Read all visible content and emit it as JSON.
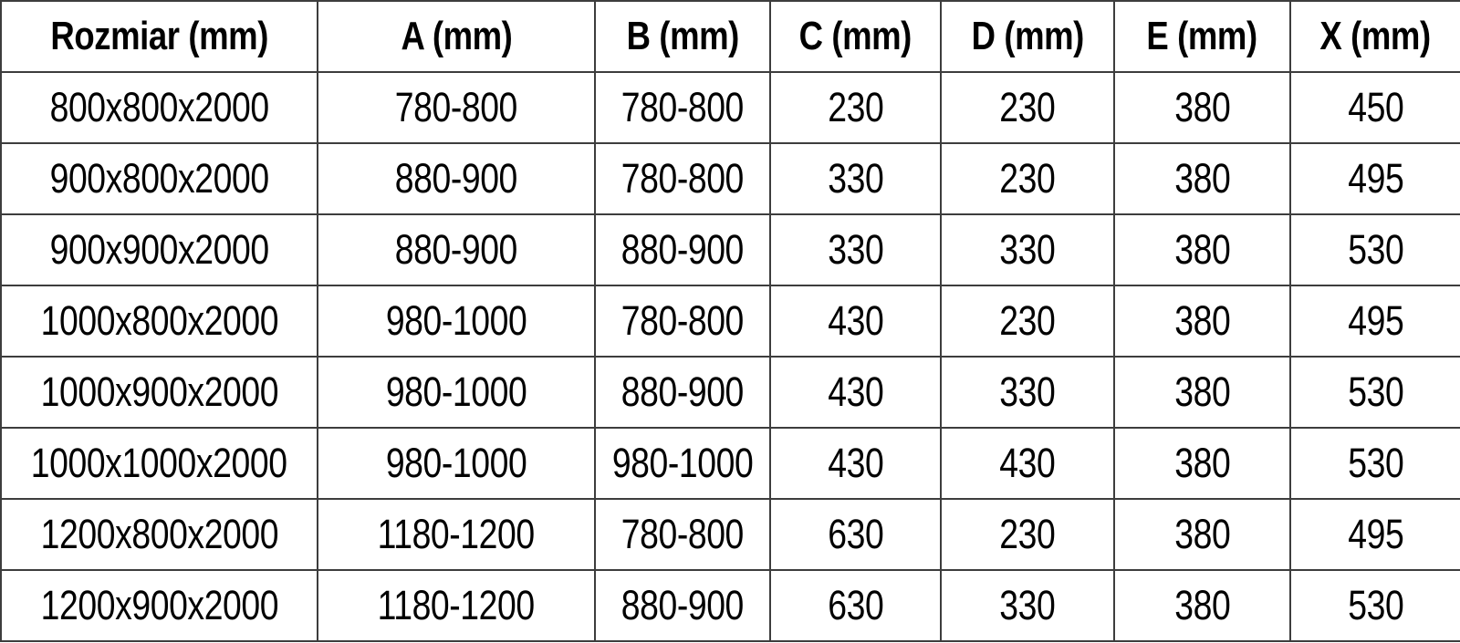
{
  "chart_data": {
    "type": "table",
    "columns": [
      "Rozmiar (mm)",
      "A (mm)",
      "B (mm)",
      "C (mm)",
      "D (mm)",
      "E (mm)",
      "X (mm)"
    ],
    "rows": [
      [
        "800x800x2000",
        "780-800",
        "780-800",
        "230",
        "230",
        "380",
        "450"
      ],
      [
        "900x800x2000",
        "880-900",
        "780-800",
        "330",
        "230",
        "380",
        "495"
      ],
      [
        "900x900x2000",
        "880-900",
        "880-900",
        "330",
        "330",
        "380",
        "530"
      ],
      [
        "1000x800x2000",
        "980-1000",
        "780-800",
        "430",
        "230",
        "380",
        "495"
      ],
      [
        "1000x900x2000",
        "980-1000",
        "880-900",
        "430",
        "330",
        "380",
        "530"
      ],
      [
        "1000x1000x2000",
        "980-1000",
        "980-1000",
        "430",
        "430",
        "380",
        "530"
      ],
      [
        "1200x800x2000",
        "1180-1200",
        "780-800",
        "630",
        "230",
        "380",
        "495"
      ],
      [
        "1200x900x2000",
        "1180-1200",
        "880-900",
        "630",
        "330",
        "380",
        "530"
      ]
    ],
    "layout": {
      "header_bold": true,
      "grid": "all-borders",
      "cell_alignment": "center"
    },
    "colors": {
      "border": "#3d3d3d",
      "text": "#000000",
      "background": "#ffffff"
    }
  }
}
